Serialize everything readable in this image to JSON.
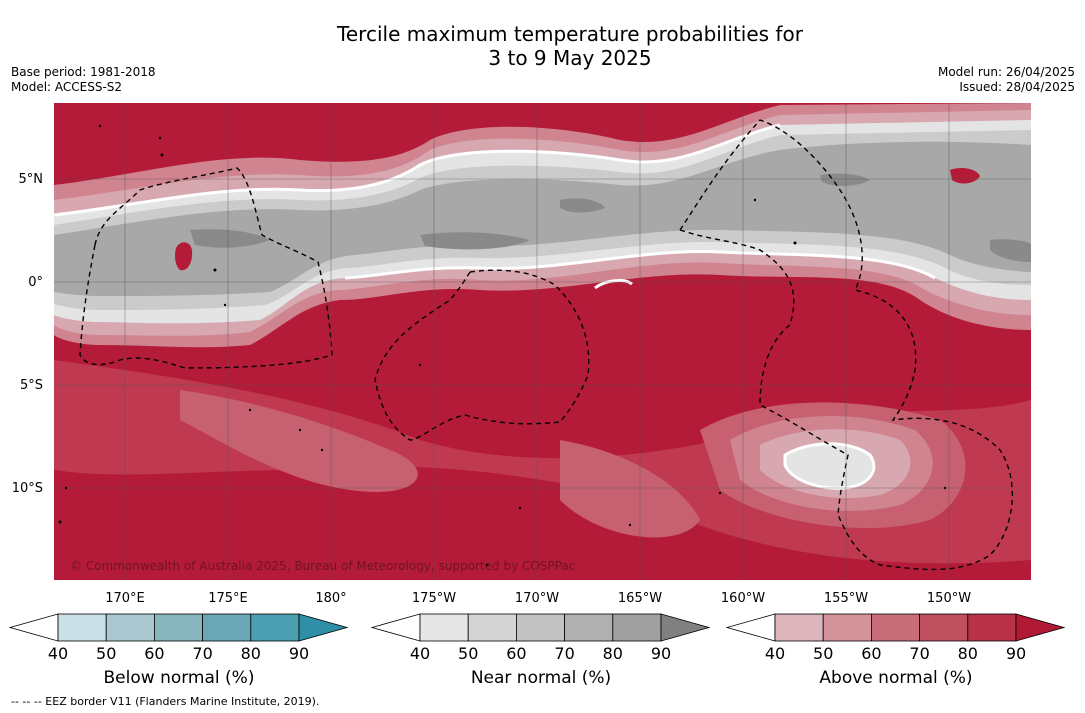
{
  "header": {
    "title_line1": "Tercile maximum temperature probabilities for",
    "title_line2": "3 to 9 May 2025",
    "base_period": "Base period: 1981-2018",
    "model": "Model: ACCESS-S2",
    "model_run": "Model run: 26/04/2025",
    "issued": "Issued: 28/04/2025"
  },
  "map": {
    "lat_labels": [
      "5°N",
      "0°",
      "5°S",
      "10°S"
    ],
    "lon_labels": [
      "170°E",
      "175°E",
      "180°",
      "175°W",
      "170°W",
      "165°W",
      "160°W",
      "155°W",
      "150°W"
    ],
    "copyright": "© Commonwealth of Australia 2025, Bureau of Meteorology, supported by COSPPac",
    "colors": {
      "above_90": "#b41b38",
      "above_80": "#bf3a50",
      "above_70": "#c76070",
      "above_60": "#cf8490",
      "above_50": "#d8a8b0",
      "near_low": "#e4e4e4",
      "near_mid": "#cbcbcb",
      "near_high": "#a8a8a8",
      "near_max": "#8a8a8a",
      "gridline": "#555555"
    }
  },
  "legends": [
    {
      "title": "Below normal (%)",
      "ticks": [
        "40",
        "50",
        "60",
        "70",
        "80",
        "90"
      ],
      "colors": [
        "#ffffff",
        "#c8e0e6",
        "#a8c7ce",
        "#89b5bf",
        "#6aa8b7",
        "#4aa0b0",
        "#2e8fa6"
      ]
    },
    {
      "title": "Near normal (%)",
      "ticks": [
        "40",
        "50",
        "60",
        "70",
        "80",
        "90"
      ],
      "colors": [
        "#ffffff",
        "#e6e6e6",
        "#d4d4d4",
        "#c2c2c2",
        "#b0b0b0",
        "#a0a0a0",
        "#808080"
      ]
    },
    {
      "title": "Above normal (%)",
      "ticks": [
        "40",
        "50",
        "60",
        "70",
        "80",
        "90"
      ],
      "colors": [
        "#ffffff",
        "#dcb6bc",
        "#d4929a",
        "#c86e7a",
        "#bf5060",
        "#b83347",
        "#b01a34"
      ]
    }
  ],
  "footnote": "--  --  -- EEZ border V11 (Flanders Marine Institute, 2019)."
}
